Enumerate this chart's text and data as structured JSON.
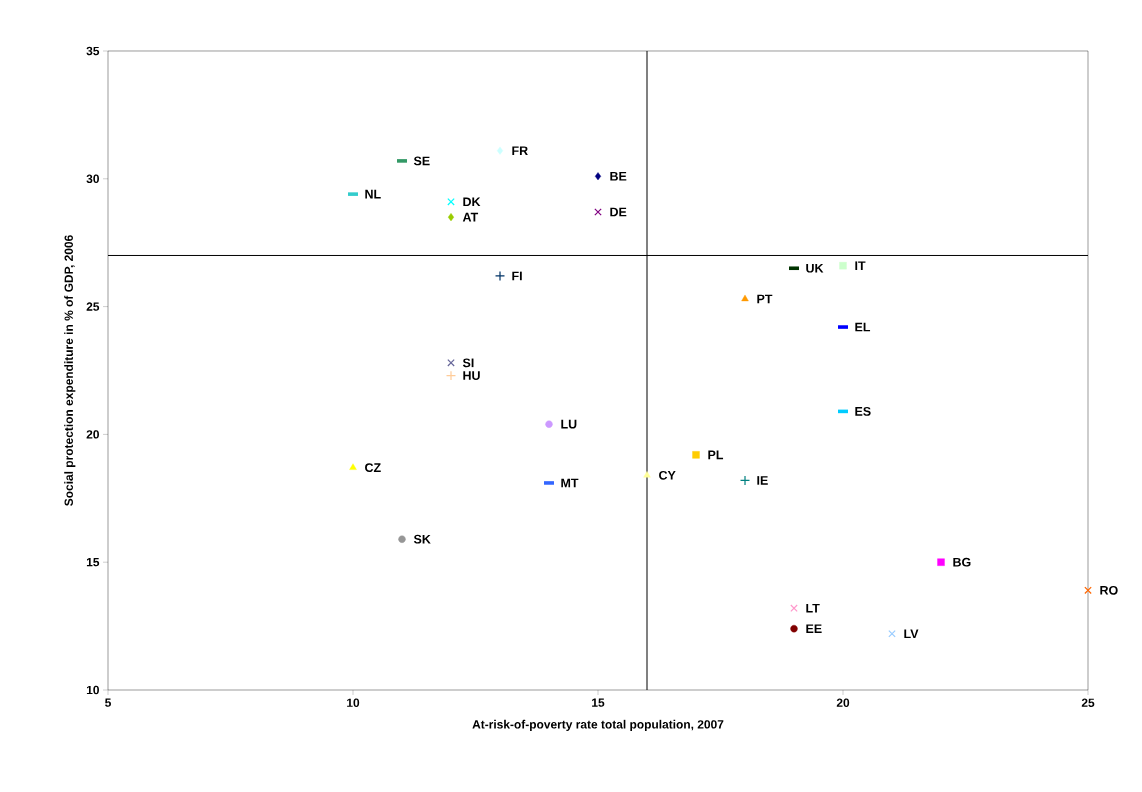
{
  "chart_data": {
    "type": "scatter",
    "xlabel": "At-risk-of-poverty rate total population, 2007",
    "ylabel": "Social protection expenditure in % of GDP, 2006",
    "xlim": [
      5,
      25
    ],
    "ylim": [
      10,
      35
    ],
    "xticks": [
      5,
      10,
      15,
      20,
      25
    ],
    "yticks": [
      10,
      15,
      20,
      25,
      30,
      35
    ],
    "grid": false,
    "ref_lines": [
      {
        "axis": "x",
        "value": 16,
        "color": "#000000"
      },
      {
        "axis": "y",
        "value": 27,
        "color": "#000000"
      }
    ],
    "series": [
      {
        "name": "NL",
        "color": "#33cccc",
        "x": [
          10
        ],
        "values": [
          29.4
        ]
      },
      {
        "name": "SE",
        "color": "#339966",
        "x": [
          11
        ],
        "values": [
          30.7
        ]
      },
      {
        "name": "FR",
        "color": "#ccffff",
        "marker": "diamond",
        "x": [
          13
        ],
        "values": [
          31.1
        ]
      },
      {
        "name": "BE",
        "color": "#000080",
        "marker": "diamond",
        "x": [
          15
        ],
        "values": [
          30.1
        ]
      },
      {
        "name": "DK",
        "color": "#00ffff",
        "marker": "cross",
        "x": [
          12
        ],
        "values": [
          29.1
        ]
      },
      {
        "name": "AT",
        "color": "#99cc00",
        "marker": "diamond",
        "x": [
          12
        ],
        "values": [
          28.5
        ]
      },
      {
        "name": "DE",
        "color": "#800080",
        "marker": "cross",
        "x": [
          15
        ],
        "values": [
          28.7
        ]
      },
      {
        "name": "FI",
        "color": "#003366",
        "marker": "plus",
        "x": [
          13
        ],
        "values": [
          26.2
        ]
      },
      {
        "name": "UK",
        "color": "#003300",
        "x": [
          19
        ],
        "values": [
          26.5
        ]
      },
      {
        "name": "IT",
        "color": "#ccffcc",
        "marker": "square",
        "x": [
          20
        ],
        "values": [
          26.6
        ]
      },
      {
        "name": "PT",
        "color": "#ff9900",
        "marker": "triangle",
        "x": [
          18
        ],
        "values": [
          25.3
        ]
      },
      {
        "name": "EL",
        "color": "#0000ff",
        "x": [
          20
        ],
        "values": [
          24.2
        ]
      },
      {
        "name": "SI",
        "color": "#666699",
        "marker": "cross",
        "x": [
          12
        ],
        "values": [
          22.8
        ]
      },
      {
        "name": "HU",
        "color": "#ffcc99",
        "marker": "plus",
        "x": [
          12
        ],
        "values": [
          22.3
        ]
      },
      {
        "name": "LU",
        "color": "#cc99ff",
        "marker": "circle",
        "x": [
          14
        ],
        "values": [
          20.4
        ]
      },
      {
        "name": "ES",
        "color": "#00ccff",
        "x": [
          20
        ],
        "values": [
          20.9
        ]
      },
      {
        "name": "CZ",
        "color": "#ffff00",
        "marker": "triangle",
        "x": [
          10
        ],
        "values": [
          18.7
        ]
      },
      {
        "name": "PL",
        "color": "#ffcc00",
        "marker": "square",
        "x": [
          17
        ],
        "values": [
          19.2
        ]
      },
      {
        "name": "CY",
        "color": "#ffff99",
        "marker": "triangle",
        "x": [
          16
        ],
        "values": [
          18.4
        ]
      },
      {
        "name": "MT",
        "color": "#3366ff",
        "x": [
          14
        ],
        "values": [
          18.1
        ]
      },
      {
        "name": "IE",
        "color": "#008080",
        "marker": "plus",
        "x": [
          18
        ],
        "values": [
          18.2
        ]
      },
      {
        "name": "SK",
        "color": "#969696",
        "marker": "circle",
        "x": [
          11
        ],
        "values": [
          15.9
        ]
      },
      {
        "name": "BG",
        "color": "#ff00ff",
        "marker": "square",
        "x": [
          22
        ],
        "values": [
          15.0
        ]
      },
      {
        "name": "RO",
        "color": "#ff6600",
        "marker": "cross",
        "x": [
          25
        ],
        "values": [
          13.9
        ]
      },
      {
        "name": "LT",
        "color": "#ff99cc",
        "marker": "cross",
        "x": [
          19
        ],
        "values": [
          13.2
        ]
      },
      {
        "name": "EE",
        "color": "#800000",
        "marker": "circle",
        "x": [
          19
        ],
        "values": [
          12.4
        ]
      },
      {
        "name": "LV",
        "color": "#99ccff",
        "marker": "cross",
        "x": [
          21
        ],
        "values": [
          12.2
        ]
      }
    ]
  }
}
